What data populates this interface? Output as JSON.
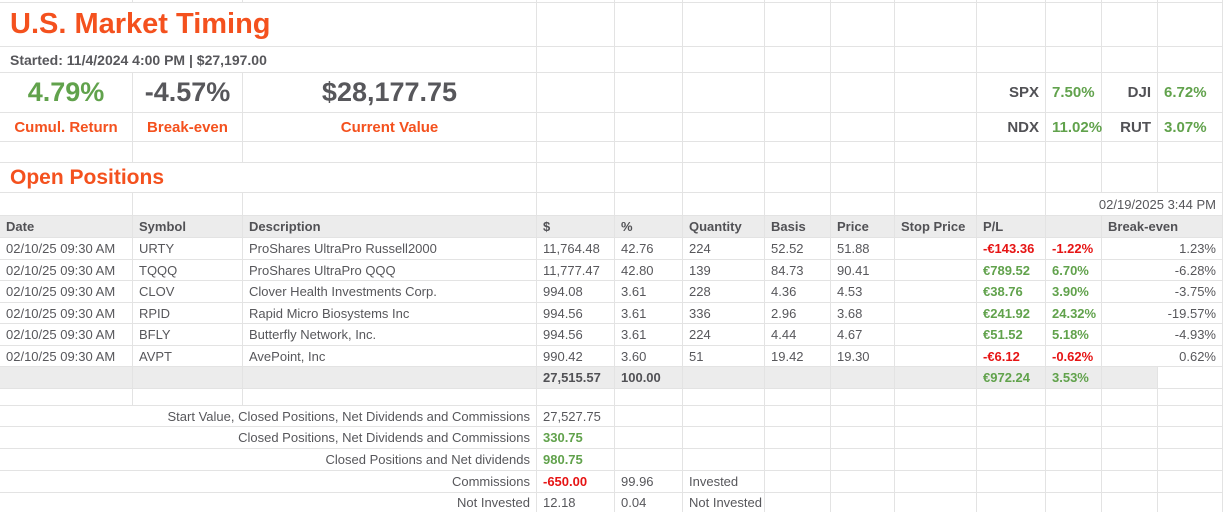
{
  "colors": {
    "accent_orange": "#f4511e",
    "positive_green": "#61a24c",
    "negative_red": "#e61414"
  },
  "header": {
    "title": "U.S. Market Timing",
    "started": "Started: 11/4/2024 4:00 PM | $27,197.00"
  },
  "summary": {
    "cumul_return_value": "4.79%",
    "cumul_return_label": "Cumul. Return",
    "break_even_value": "-4.57%",
    "break_even_label": "Break-even",
    "current_value": "$28,177.75",
    "current_value_label": "Current Value",
    "indices": {
      "spx_label": "SPX",
      "spx_value": "7.50%",
      "dji_label": "DJI",
      "dji_value": "6.72%",
      "ndx_label": "NDX",
      "ndx_value": "11.02%",
      "rut_label": "RUT",
      "rut_value": "3.07%"
    }
  },
  "positions": {
    "section_title": "Open Positions",
    "timestamp": "02/19/2025 3:44 PM",
    "headers": {
      "date": "Date",
      "symbol": "Symbol",
      "description": "Description",
      "dollars": "$",
      "percent": "%",
      "quantity": "Quantity",
      "basis": "Basis",
      "price": "Price",
      "stop_price": "Stop Price",
      "pl": "P/L",
      "break_even": "Break-even"
    },
    "rows": [
      {
        "date": "02/10/25 09:30 AM",
        "symbol": "URTY",
        "description": "ProShares UltraPro Russell2000",
        "dollars": "11,764.48",
        "percent": "42.76",
        "quantity": "224",
        "basis": "52.52",
        "price": "51.88",
        "stop_price": "",
        "pl": "-€143.36",
        "pl_percent": "-1.22%",
        "pl_class": "neg",
        "break_even": "1.23%"
      },
      {
        "date": "02/10/25 09:30 AM",
        "symbol": "TQQQ",
        "description": "ProShares UltraPro QQQ",
        "dollars": "11,777.47",
        "percent": "42.80",
        "quantity": "139",
        "basis": "84.73",
        "price": "90.41",
        "stop_price": "",
        "pl": "€789.52",
        "pl_percent": "6.70%",
        "pl_class": "pos",
        "break_even": "-6.28%"
      },
      {
        "date": "02/10/25 09:30 AM",
        "symbol": "CLOV",
        "description": "Clover Health Investments Corp.",
        "dollars": "994.08",
        "percent": "3.61",
        "quantity": "228",
        "basis": "4.36",
        "price": "4.53",
        "stop_price": "",
        "pl": "€38.76",
        "pl_percent": "3.90%",
        "pl_class": "pos",
        "break_even": "-3.75%"
      },
      {
        "date": "02/10/25 09:30 AM",
        "symbol": "RPID",
        "description": "Rapid Micro Biosystems Inc",
        "dollars": "994.56",
        "percent": "3.61",
        "quantity": "336",
        "basis": "2.96",
        "price": "3.68",
        "stop_price": "",
        "pl": "€241.92",
        "pl_percent": "24.32%",
        "pl_class": "pos",
        "break_even": "-19.57%"
      },
      {
        "date": "02/10/25 09:30 AM",
        "symbol": "BFLY",
        "description": "Butterfly Network, Inc.",
        "dollars": "994.56",
        "percent": "3.61",
        "quantity": "224",
        "basis": "4.44",
        "price": "4.67",
        "stop_price": "",
        "pl": "€51.52",
        "pl_percent": "5.18%",
        "pl_class": "pos",
        "break_even": "-4.93%"
      },
      {
        "date": "02/10/25 09:30 AM",
        "symbol": "AVPT",
        "description": "AvePoint, Inc",
        "dollars": "990.42",
        "percent": "3.60",
        "quantity": "51",
        "basis": "19.42",
        "price": "19.30",
        "stop_price": "",
        "pl": "-€6.12",
        "pl_percent": "-0.62%",
        "pl_class": "neg",
        "break_even": "0.62%"
      }
    ],
    "totals": {
      "dollars": "27,515.57",
      "percent": "100.00",
      "pl": "€972.24",
      "pl_percent": "3.53%",
      "pl_class": "pos"
    }
  },
  "footer": {
    "rows": [
      {
        "label": "Start Value, Closed Positions, Net Dividends and Commissions",
        "value": "27,527.75",
        "value_class": "plain",
        "percent": "",
        "note": ""
      },
      {
        "label": "Closed Positions, Net Dividends and Commissions",
        "value": "330.75",
        "value_class": "pos",
        "percent": "",
        "note": ""
      },
      {
        "label": "Closed Positions and Net dividends",
        "value": "980.75",
        "value_class": "pos",
        "percent": "",
        "note": ""
      },
      {
        "label": "Commissions",
        "value": "-650.00",
        "value_class": "neg",
        "percent": "99.96",
        "note": "Invested"
      },
      {
        "label": "Not Invested",
        "value": "12.18",
        "value_class": "plain",
        "percent": "0.04",
        "note": "Not Invested"
      }
    ]
  }
}
